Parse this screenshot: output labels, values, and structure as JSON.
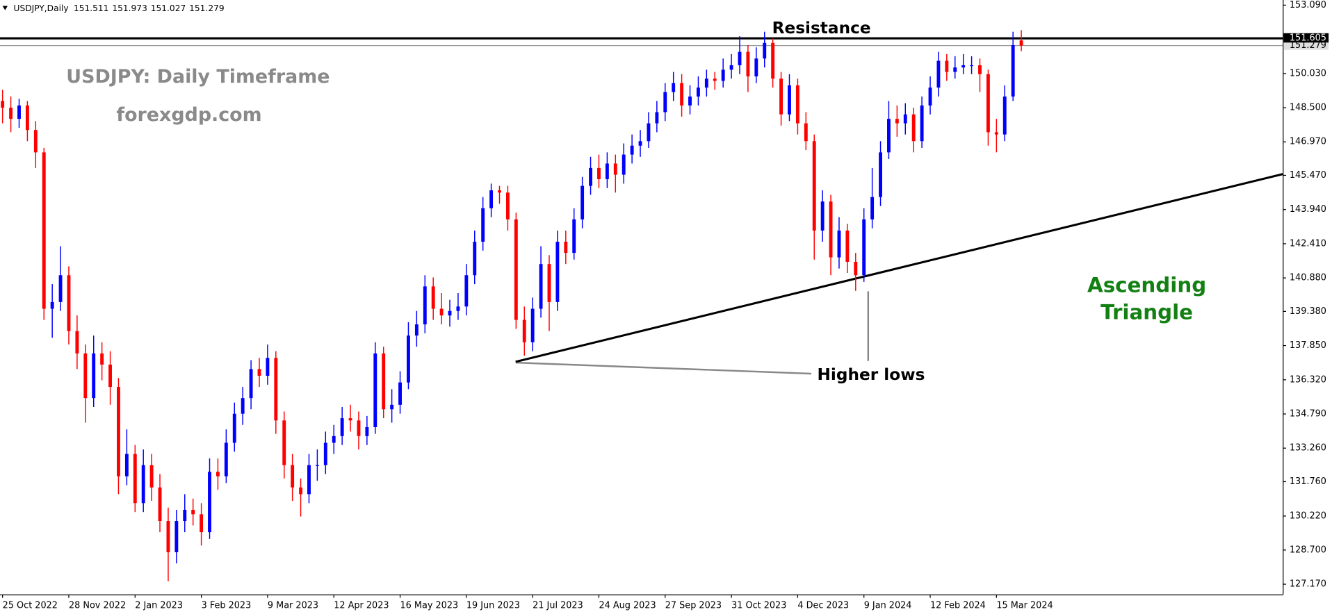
{
  "chart_data": {
    "type": "candlestick",
    "symbol": "USDJPY,Daily",
    "title": "USDJPY: Daily Timeframe",
    "subtitle": "forexgdp.com",
    "categories": [
      "25 Oct 2022",
      null,
      null,
      null,
      null,
      null,
      null,
      null,
      "28 Nov 2022",
      null,
      null,
      null,
      null,
      null,
      null,
      null,
      "2 Jan 2023",
      null,
      null,
      null,
      null,
      null,
      null,
      null,
      "3 Feb 2023",
      null,
      null,
      null,
      null,
      null,
      null,
      null,
      "9 Mar 2023",
      null,
      null,
      null,
      null,
      null,
      null,
      null,
      "12 Apr 2023",
      null,
      null,
      null,
      null,
      null,
      null,
      null,
      "16 May 2023",
      null,
      null,
      null,
      null,
      null,
      null,
      null,
      "19 Jun 2023",
      null,
      null,
      null,
      null,
      null,
      null,
      null,
      "21 Jul 2023",
      null,
      null,
      null,
      null,
      null,
      null,
      null,
      "24 Aug 2023",
      null,
      null,
      null,
      null,
      null,
      null,
      null,
      "27 Sep 2023",
      null,
      null,
      null,
      null,
      null,
      null,
      null,
      "31 Oct 2023",
      null,
      null,
      null,
      null,
      null,
      null,
      null,
      "4 Dec 2023",
      null,
      null,
      null,
      null,
      null,
      null,
      null,
      "9 Jan 2024",
      null,
      null,
      null,
      null,
      null,
      null,
      null,
      "12 Feb 2024",
      null,
      null,
      null,
      null,
      null,
      null,
      null,
      "15 Mar 2024",
      null,
      null,
      null
    ],
    "ohlc": [
      [
        148.8,
        149.3,
        147.8,
        148.5
      ],
      [
        148.5,
        149.0,
        147.4,
        148.0
      ],
      [
        148.0,
        148.9,
        147.6,
        148.6
      ],
      [
        148.6,
        148.8,
        147.0,
        147.5
      ],
      [
        147.5,
        147.9,
        145.8,
        146.5
      ],
      [
        146.5,
        146.7,
        139.0,
        139.5
      ],
      [
        139.5,
        140.6,
        138.2,
        139.8
      ],
      [
        139.8,
        142.3,
        139.4,
        141.0
      ],
      [
        141.0,
        141.4,
        137.9,
        138.5
      ],
      [
        138.5,
        139.2,
        136.8,
        137.5
      ],
      [
        137.5,
        137.9,
        134.4,
        135.5
      ],
      [
        135.5,
        138.3,
        135.1,
        137.5
      ],
      [
        137.5,
        138.0,
        136.3,
        137.0
      ],
      [
        137.0,
        137.6,
        135.2,
        136.0
      ],
      [
        136.0,
        136.4,
        131.2,
        132.0
      ],
      [
        132.0,
        134.1,
        131.6,
        133.0
      ],
      [
        133.0,
        133.4,
        130.4,
        130.8
      ],
      [
        130.8,
        133.2,
        130.4,
        132.5
      ],
      [
        132.5,
        133.0,
        130.9,
        131.5
      ],
      [
        131.5,
        132.1,
        129.5,
        130.0
      ],
      [
        130.0,
        130.6,
        127.3,
        128.6
      ],
      [
        128.6,
        130.5,
        128.1,
        130.0
      ],
      [
        130.0,
        131.2,
        129.5,
        130.5
      ],
      [
        130.5,
        131.0,
        129.8,
        130.3
      ],
      [
        130.3,
        130.8,
        128.9,
        129.5
      ],
      [
        129.5,
        132.8,
        129.2,
        132.2
      ],
      [
        132.2,
        132.8,
        131.4,
        132.0
      ],
      [
        132.0,
        134.1,
        131.7,
        133.5
      ],
      [
        133.5,
        135.3,
        133.1,
        134.8
      ],
      [
        134.8,
        136.0,
        134.3,
        135.5
      ],
      [
        135.5,
        137.2,
        135.0,
        136.8
      ],
      [
        136.8,
        137.3,
        136.0,
        136.5
      ],
      [
        136.5,
        137.9,
        136.1,
        137.3
      ],
      [
        137.3,
        137.6,
        133.9,
        134.5
      ],
      [
        134.5,
        134.9,
        131.9,
        132.5
      ],
      [
        132.5,
        133.0,
        130.9,
        131.5
      ],
      [
        131.5,
        131.9,
        130.2,
        131.2
      ],
      [
        131.2,
        133.0,
        130.8,
        132.5
      ],
      [
        132.5,
        133.2,
        131.8,
        132.5
      ],
      [
        132.5,
        134.0,
        132.1,
        133.5
      ],
      [
        133.5,
        134.3,
        133.0,
        133.8
      ],
      [
        133.8,
        135.1,
        133.4,
        134.6
      ],
      [
        134.6,
        135.2,
        134.0,
        134.5
      ],
      [
        134.5,
        134.9,
        133.2,
        133.8
      ],
      [
        133.8,
        134.7,
        133.4,
        134.2
      ],
      [
        134.2,
        138.0,
        133.9,
        137.5
      ],
      [
        137.5,
        137.8,
        134.6,
        135.0
      ],
      [
        135.0,
        135.9,
        134.4,
        135.2
      ],
      [
        135.2,
        136.7,
        134.8,
        136.2
      ],
      [
        136.2,
        138.9,
        135.9,
        138.3
      ],
      [
        138.3,
        139.4,
        137.8,
        138.8
      ],
      [
        138.8,
        141.0,
        138.4,
        140.5
      ],
      [
        140.5,
        140.9,
        139.0,
        139.5
      ],
      [
        139.5,
        140.2,
        138.8,
        139.2
      ],
      [
        139.2,
        139.9,
        138.7,
        139.4
      ],
      [
        139.4,
        140.2,
        139.0,
        139.6
      ],
      [
        139.6,
        141.5,
        139.2,
        141.0
      ],
      [
        141.0,
        143.0,
        140.6,
        142.5
      ],
      [
        142.5,
        144.5,
        142.1,
        144.0
      ],
      [
        144.0,
        145.1,
        143.6,
        144.8
      ],
      [
        144.8,
        145.0,
        144.2,
        144.7
      ],
      [
        144.7,
        145.0,
        143.0,
        143.5
      ],
      [
        143.5,
        143.8,
        138.6,
        139.0
      ],
      [
        139.0,
        139.6,
        137.4,
        138.0
      ],
      [
        138.0,
        140.0,
        137.6,
        139.5
      ],
      [
        139.5,
        142.3,
        139.1,
        141.5
      ],
      [
        141.5,
        141.9,
        138.5,
        139.8
      ],
      [
        139.8,
        143.0,
        139.4,
        142.5
      ],
      [
        142.5,
        143.0,
        141.5,
        142.0
      ],
      [
        142.0,
        144.0,
        141.7,
        143.5
      ],
      [
        143.5,
        145.4,
        143.1,
        145.0
      ],
      [
        145.0,
        146.3,
        144.6,
        145.8
      ],
      [
        145.8,
        146.4,
        144.9,
        145.3
      ],
      [
        145.3,
        146.5,
        144.9,
        146.0
      ],
      [
        146.0,
        146.4,
        144.7,
        145.5
      ],
      [
        145.5,
        146.9,
        145.1,
        146.4
      ],
      [
        146.4,
        147.3,
        146.0,
        146.8
      ],
      [
        146.8,
        147.5,
        146.3,
        147.0
      ],
      [
        147.0,
        148.3,
        146.7,
        147.8
      ],
      [
        147.8,
        148.8,
        147.4,
        148.3
      ],
      [
        148.3,
        149.6,
        147.9,
        149.2
      ],
      [
        149.2,
        150.1,
        148.8,
        149.6
      ],
      [
        149.6,
        150.0,
        148.1,
        148.6
      ],
      [
        148.6,
        149.5,
        148.2,
        149.0
      ],
      [
        149.0,
        149.9,
        148.6,
        149.4
      ],
      [
        149.4,
        150.2,
        149.0,
        149.8
      ],
      [
        149.8,
        150.1,
        149.3,
        149.7
      ],
      [
        149.7,
        150.7,
        149.4,
        150.2
      ],
      [
        150.2,
        150.9,
        149.8,
        150.4
      ],
      [
        150.4,
        151.7,
        150.0,
        151.0
      ],
      [
        151.0,
        151.3,
        149.2,
        149.9
      ],
      [
        149.9,
        151.2,
        149.6,
        150.7
      ],
      [
        150.7,
        151.9,
        150.3,
        151.4
      ],
      [
        151.4,
        151.6,
        149.4,
        149.8
      ],
      [
        149.8,
        150.1,
        147.7,
        148.2
      ],
      [
        148.2,
        150.0,
        147.9,
        149.5
      ],
      [
        149.5,
        149.8,
        147.3,
        147.8
      ],
      [
        147.8,
        148.3,
        146.6,
        147.0
      ],
      [
        147.0,
        147.3,
        141.7,
        143.0
      ],
      [
        143.0,
        144.8,
        142.5,
        144.3
      ],
      [
        144.3,
        144.6,
        141.0,
        141.8
      ],
      [
        141.8,
        143.6,
        141.3,
        143.0
      ],
      [
        143.0,
        143.3,
        141.1,
        141.6
      ],
      [
        141.6,
        142.0,
        140.3,
        141.0
      ],
      [
        141.0,
        144.0,
        140.7,
        143.5
      ],
      [
        143.5,
        145.8,
        143.1,
        144.5
      ],
      [
        144.5,
        147.0,
        144.1,
        146.5
      ],
      [
        146.5,
        148.8,
        146.2,
        148.0
      ],
      [
        148.0,
        148.6,
        147.2,
        147.8
      ],
      [
        147.8,
        148.7,
        147.3,
        148.2
      ],
      [
        148.2,
        148.5,
        146.5,
        147.0
      ],
      [
        147.0,
        149.0,
        146.7,
        148.6
      ],
      [
        148.6,
        149.9,
        148.2,
        149.4
      ],
      [
        149.4,
        151.0,
        149.0,
        150.6
      ],
      [
        150.6,
        150.9,
        149.7,
        150.1
      ],
      [
        150.1,
        150.8,
        149.8,
        150.3
      ],
      [
        150.3,
        150.9,
        150.0,
        150.4
      ],
      [
        150.4,
        150.8,
        150.0,
        150.4
      ],
      [
        150.4,
        150.7,
        149.2,
        150.0
      ],
      [
        150.0,
        150.2,
        146.8,
        147.4
      ],
      [
        147.4,
        148.0,
        146.5,
        147.3
      ],
      [
        147.3,
        149.5,
        147.0,
        149.0
      ],
      [
        149.0,
        151.9,
        148.8,
        151.3
      ],
      [
        151.511,
        151.973,
        151.027,
        151.279
      ]
    ],
    "up_color": "#0000ff",
    "down_color": "#ff0000",
    "ylim": [
      126.71,
      153.32
    ],
    "yticks": [
      {
        "value": 153.09,
        "label": "153.090"
      },
      {
        "value": 150.03,
        "label": "150.030"
      },
      {
        "value": 148.5,
        "label": "148.500"
      },
      {
        "value": 146.97,
        "label": "146.970"
      },
      {
        "value": 145.47,
        "label": "145.470"
      },
      {
        "value": 143.94,
        "label": "143.940"
      },
      {
        "value": 142.41,
        "label": "142.410"
      },
      {
        "value": 140.88,
        "label": "140.880"
      },
      {
        "value": 139.38,
        "label": "139.380"
      },
      {
        "value": 137.85,
        "label": "137.850"
      },
      {
        "value": 136.32,
        "label": "136.320"
      },
      {
        "value": 134.79,
        "label": "134.790"
      },
      {
        "value": 133.26,
        "label": "133.260"
      },
      {
        "value": 131.76,
        "label": "131.760"
      },
      {
        "value": 130.22,
        "label": "130.220"
      },
      {
        "value": 128.7,
        "label": "128.700"
      },
      {
        "value": 127.17,
        "label": "127.170"
      }
    ],
    "grid": false,
    "resistance": {
      "label": "Resistance",
      "value": 151.605
    },
    "higher_lows_label": "Higher lows",
    "pattern_label": [
      "Ascending",
      "Triangle"
    ],
    "pattern_color": "#138013"
  }
}
